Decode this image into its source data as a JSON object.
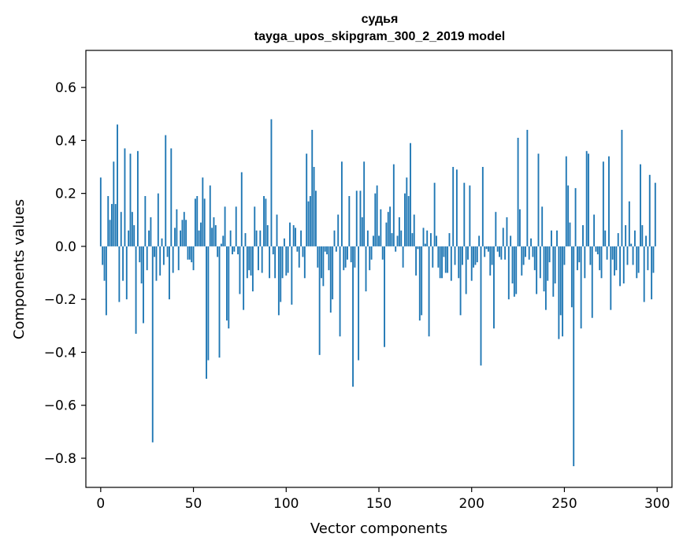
{
  "chart_data": {
    "type": "bar",
    "title_line1": "судья",
    "title_line2": "tayga_upos_skipgram_300_2_2019 model",
    "xlabel": "Vector components",
    "ylabel": "Components values",
    "xlim": [
      -8,
      308
    ],
    "ylim": [
      -0.91,
      0.74
    ],
    "xticks": [
      0,
      50,
      100,
      150,
      200,
      250,
      300
    ],
    "xtick_labels": [
      "0",
      "50",
      "100",
      "150",
      "200",
      "250",
      "300"
    ],
    "yticks": [
      0.6,
      0.4,
      0.2,
      0.0,
      -0.2,
      -0.4,
      -0.6,
      -0.8
    ],
    "ytick_labels": [
      "0.6",
      "0.4",
      "0.2",
      "0.0",
      "−0.2",
      "−0.4",
      "−0.6",
      "−0.8"
    ],
    "bar_color": "#1f77b4",
    "values": [
      0.26,
      -0.07,
      -0.13,
      -0.26,
      0.19,
      0.1,
      0.16,
      0.32,
      0.16,
      0.46,
      -0.21,
      0.13,
      -0.13,
      0.37,
      -0.2,
      0.06,
      0.35,
      0.13,
      0.08,
      -0.33,
      0.36,
      -0.06,
      -0.14,
      -0.29,
      0.19,
      -0.09,
      0.06,
      0.11,
      -0.74,
      -0.04,
      -0.13,
      0.2,
      -0.11,
      0.03,
      -0.07,
      0.42,
      -0.04,
      -0.2,
      0.37,
      -0.1,
      0.07,
      0.14,
      -0.09,
      0.06,
      0.1,
      0.13,
      0.1,
      -0.05,
      -0.05,
      -0.06,
      -0.09,
      0.18,
      0.19,
      0.06,
      0.09,
      0.26,
      0.18,
      -0.5,
      -0.43,
      0.23,
      0.07,
      0.11,
      0.08,
      -0.04,
      -0.42,
      0.01,
      0.04,
      0.15,
      -0.28,
      -0.31,
      0.06,
      -0.03,
      -0.02,
      0.15,
      -0.03,
      -0.18,
      0.28,
      -0.24,
      0.05,
      -0.12,
      -0.09,
      -0.11,
      -0.17,
      0.15,
      0.06,
      -0.09,
      0.06,
      -0.1,
      0.19,
      0.18,
      0.08,
      -0.12,
      0.48,
      -0.03,
      -0.12,
      0.12,
      -0.26,
      -0.21,
      -0.12,
      0.03,
      -0.11,
      -0.1,
      0.09,
      -0.22,
      0.08,
      0.07,
      -0.02,
      -0.08,
      0.06,
      -0.04,
      -0.12,
      0.35,
      0.17,
      0.19,
      0.44,
      0.3,
      0.21,
      -0.08,
      -0.41,
      -0.12,
      -0.15,
      -0.02,
      -0.03,
      -0.09,
      -0.25,
      -0.2,
      0.06,
      -0.02,
      0.12,
      -0.34,
      0.32,
      -0.09,
      -0.08,
      -0.05,
      0.19,
      -0.06,
      -0.53,
      -0.08,
      0.21,
      -0.43,
      0.21,
      0.11,
      0.32,
      -0.17,
      0.06,
      -0.09,
      -0.05,
      0.04,
      0.2,
      0.23,
      0.04,
      0.14,
      -0.05,
      -0.38,
      0.09,
      0.13,
      0.15,
      0.05,
      0.31,
      -0.02,
      0.04,
      0.11,
      0.06,
      -0.08,
      0.2,
      0.26,
      0.19,
      0.39,
      0.05,
      0.12,
      -0.11,
      -0.01,
      -0.28,
      -0.26,
      0.07,
      0.01,
      0.06,
      -0.34,
      0.05,
      -0.08,
      0.24,
      0.04,
      -0.08,
      -0.12,
      -0.12,
      -0.04,
      -0.1,
      -0.1,
      0.05,
      -0.13,
      0.3,
      -0.07,
      0.29,
      -0.12,
      -0.26,
      -0.07,
      0.24,
      -0.18,
      -0.05,
      0.23,
      -0.13,
      -0.08,
      -0.07,
      -0.06,
      0.04,
      -0.45,
      0.3,
      -0.04,
      -0.01,
      -0.02,
      -0.11,
      -0.07,
      -0.31,
      0.13,
      -0.02,
      -0.04,
      -0.05,
      0.07,
      -0.05,
      0.11,
      -0.2,
      0.04,
      -0.14,
      -0.19,
      -0.18,
      0.41,
      0.14,
      -0.11,
      -0.07,
      -0.04,
      0.44,
      -0.05,
      0.03,
      -0.04,
      -0.09,
      -0.18,
      0.35,
      -0.12,
      0.15,
      -0.17,
      -0.24,
      -0.13,
      -0.06,
      0.06,
      -0.19,
      -0.14,
      0.06,
      -0.35,
      -0.26,
      -0.34,
      -0.07,
      0.34,
      0.23,
      0.09,
      -0.23,
      -0.83,
      0.22,
      -0.09,
      -0.06,
      -0.31,
      0.08,
      -0.12,
      0.36,
      0.35,
      -0.07,
      -0.27,
      0.12,
      -0.02,
      -0.03,
      -0.09,
      -0.12,
      0.32,
      0.06,
      -0.05,
      0.34,
      -0.24,
      -0.05,
      -0.11,
      -0.09,
      0.05,
      -0.15,
      0.44,
      -0.14,
      0.08,
      -0.07,
      0.17,
      0.01,
      -0.07,
      0.06,
      -0.12,
      -0.1,
      0.31,
      0.08,
      -0.21,
      0.04,
      -0.09,
      0.27,
      -0.2,
      -0.1,
      0.24
    ]
  }
}
